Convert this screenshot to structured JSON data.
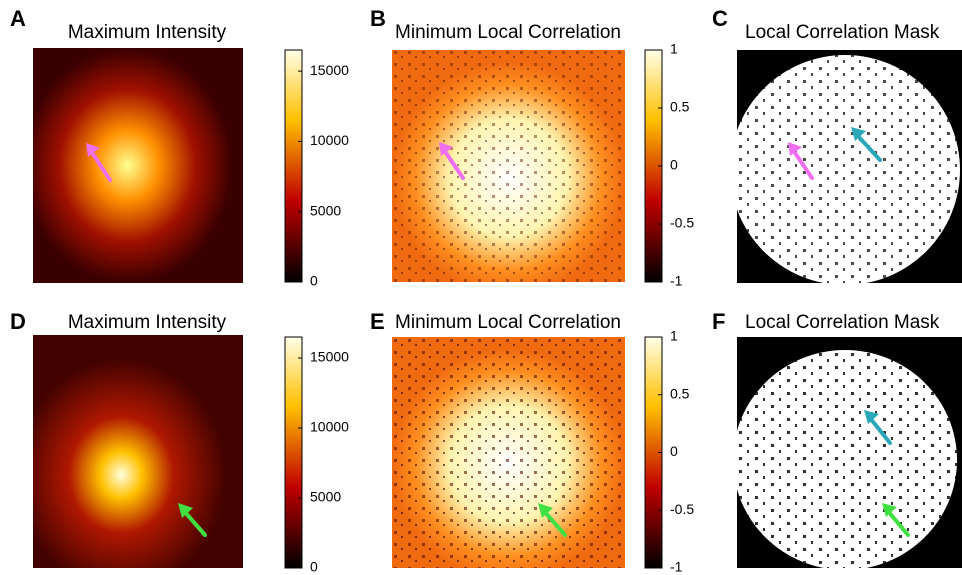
{
  "panels": [
    {
      "label": "A",
      "title": "Maximum Intensity",
      "colorbar": {
        "lim": [
          0,
          16500
        ],
        "ticks": [
          0,
          5000,
          10000,
          15000
        ]
      }
    },
    {
      "label": "B",
      "title": "Minimum Local Correlation",
      "colorbar": {
        "lim": [
          -1,
          1
        ],
        "ticks": [
          -1,
          -0.5,
          0,
          0.5,
          1
        ]
      }
    },
    {
      "label": "C",
      "title": "Local Correlation Mask"
    },
    {
      "label": "D",
      "title": "Maximum Intensity",
      "colorbar": {
        "lim": [
          0,
          16500
        ],
        "ticks": [
          0,
          5000,
          10000,
          15000
        ]
      }
    },
    {
      "label": "E",
      "title": "Minimum Local Correlation",
      "colorbar": {
        "lim": [
          -1,
          1
        ],
        "ticks": [
          -1,
          -0.5,
          0,
          0.5,
          1
        ]
      }
    },
    {
      "label": "F",
      "title": "Local Correlation Mask"
    }
  ]
}
